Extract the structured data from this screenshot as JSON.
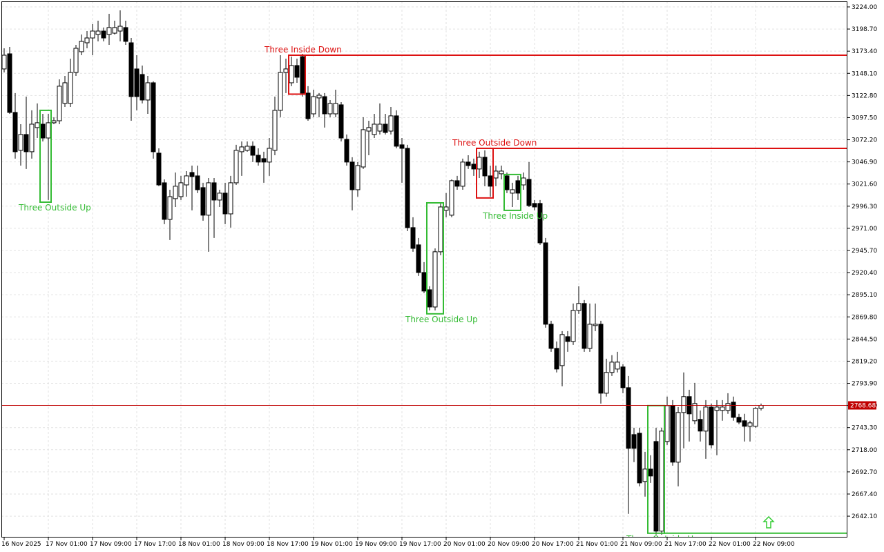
{
  "chart_data": {
    "type": "candlestick",
    "ylim": [
      2618.5,
      3230.3
    ],
    "yticks": [
      {
        "value": 3224,
        "label": "3224.00"
      },
      {
        "value": 3198.7,
        "label": "3198.70"
      },
      {
        "value": 3173.4,
        "label": "3173.40"
      },
      {
        "value": 3148.1,
        "label": "3148.10"
      },
      {
        "value": 3122.8,
        "label": "3122.80"
      },
      {
        "value": 3097.5,
        "label": "3097.50"
      },
      {
        "value": 3072.2,
        "label": "3072.20"
      },
      {
        "value": 3046.9,
        "label": "3046.90"
      },
      {
        "value": 3021.6,
        "label": "3021.60"
      },
      {
        "value": 2996.3,
        "label": "2996.30"
      },
      {
        "value": 2971,
        "label": "2971.00"
      },
      {
        "value": 2945.7,
        "label": "2945.70"
      },
      {
        "value": 2920.4,
        "label": "2920.40"
      },
      {
        "value": 2895.1,
        "label": "2895.10"
      },
      {
        "value": 2869.8,
        "label": "2869.80"
      },
      {
        "value": 2844.5,
        "label": "2844.50"
      },
      {
        "value": 2819.2,
        "label": "2819.20"
      },
      {
        "value": 2793.9,
        "label": "2793.90"
      },
      {
        "value": 2768.6,
        "label": "2768.60"
      },
      {
        "value": 2743.3,
        "label": "2743.30"
      },
      {
        "value": 2718,
        "label": "2718.00"
      },
      {
        "value": 2692.7,
        "label": "2692.70"
      },
      {
        "value": 2667.4,
        "label": "2667.40"
      },
      {
        "value": 2642.1,
        "label": "2642.10"
      }
    ],
    "grid": true,
    "bull_color": "#ffffff",
    "bear_color": "#000000",
    "categories": [
      "16 Nov 2025",
      null,
      null,
      null,
      null,
      null,
      null,
      null,
      "17 Nov 01:00",
      null,
      null,
      null,
      null,
      null,
      null,
      null,
      "17 Nov 09:00",
      null,
      null,
      null,
      null,
      null,
      null,
      null,
      "17 Nov 17:00",
      null,
      null,
      null,
      null,
      null,
      null,
      null,
      "18 Nov 01:00",
      null,
      null,
      null,
      null,
      null,
      null,
      null,
      "18 Nov 09:00",
      null,
      null,
      null,
      null,
      null,
      null,
      null,
      "18 Nov 17:00",
      null,
      null,
      null,
      null,
      null,
      null,
      null,
      "19 Nov 01:00",
      null,
      null,
      null,
      null,
      null,
      null,
      null,
      "19 Nov 09:00",
      null,
      null,
      null,
      null,
      null,
      null,
      null,
      "19 Nov 17:00",
      null,
      null,
      null,
      null,
      null,
      null,
      null,
      "20 Nov 01:00",
      null,
      null,
      null,
      null,
      null,
      null,
      null,
      "20 Nov 09:00",
      null,
      null,
      null,
      null,
      null,
      null,
      null,
      "20 Nov 17:00",
      null,
      null,
      null,
      null,
      null,
      null,
      null,
      "21 Nov 01:00",
      null,
      null,
      null,
      null,
      null,
      null,
      null,
      "21 Nov 09:00",
      null,
      null,
      null,
      null,
      null,
      null,
      null,
      "21 Nov 17:00",
      null,
      null,
      null,
      null,
      null,
      null,
      null,
      "22 Nov 01:00",
      null,
      null,
      null,
      null,
      null,
      null,
      null,
      "22 Nov 09:00",
      null
    ],
    "open": [
      3153.1,
      3170.4,
      3103.4,
      3060.1,
      3078.2,
      3058.5,
      3086.1,
      3090.0,
      3074.2,
      3091.6,
      3093.9,
      3113.7,
      3113.7,
      3149.1,
      3172.8,
      3183.0,
      3188.5,
      3192.5,
      3196.4,
      3192.5,
      3194.0,
      3196.4,
      3200.4,
      3183.0,
      3153.1,
      3146.8,
      3117.6,
      3137.3,
      3056.9,
      3023.0,
      2981.2,
      3004.9,
      3007.2,
      3020.6,
      3034.8,
      3030.9,
      3017.5,
      2986.0,
      3023.0,
      3003.3,
      3011.2,
      2987.5,
      3023.0,
      3058.5,
      3060.1,
      3064.8,
      3054.5,
      3050.6,
      3046.7,
      3060.1,
      3105.8,
      3149.1,
      3137.3,
      3157.0,
      3167.2,
      3125.5,
      3101.8,
      3120.0,
      3121.5,
      3101.8,
      3101.8,
      3112.1,
      3072.7,
      3046.7,
      3015.1,
      3041.1,
      3082.1,
      3078.2,
      3082.1,
      3090.0,
      3082.1,
      3099.5,
      3066.4,
      3062.4,
      2971.8,
      2952.1,
      2920.5,
      2900.8,
      2881.1,
      2944.2,
      2991.5,
      2986.0,
      3025.4,
      3019.1,
      3046.7,
      3044.3,
      3038.8,
      3052.2,
      3030.9,
      3028.5,
      3033.3,
      3030.9,
      3011.2,
      3025.4,
      3020.6,
      3026.9,
      2999.4,
      2999.4,
      2954.4,
      2861.4,
      2833.8,
      2814.1,
      2847.2,
      2841.7,
      2877.2,
      2885.1,
      2833.8,
      2859.9,
      2861.4,
      2782.6,
      2806.3,
      2810.2,
      2812.6,
      2788.9,
      2735.3,
      2736.9,
      2681.7,
      2695.9,
      2727.4,
      2625.0,
      2727.4,
      2768.4,
      2703.8,
      2760.5,
      2778.7,
      2751.1,
      2752.7,
      2739.3,
      2766.8,
      2762.9,
      2762.9,
      2762.9,
      2772.4,
      2755.0,
      2751.1,
      2744.8,
      2744.8,
      2765.3
    ],
    "high": [
      3176.7,
      3178.3,
      3125.5,
      3090.0,
      3121.5,
      3105.8,
      3113.7,
      3101.8,
      3101.8,
      3097.9,
      3141.2,
      3145.2,
      3164.9,
      3180.6,
      3192.5,
      3196.4,
      3204.3,
      3208.2,
      3200.4,
      3216.1,
      3208.2,
      3220.1,
      3208.2,
      3188.5,
      3168.8,
      3157.0,
      3145.2,
      3138.9,
      3062.4,
      3026.9,
      3015.1,
      3034.8,
      3030.9,
      3036.4,
      3042.7,
      3042.7,
      3023.0,
      3028.5,
      3028.5,
      3015.1,
      3023.0,
      3030.9,
      3066.4,
      3070.3,
      3070.3,
      3070.3,
      3062.4,
      3058.5,
      3074.2,
      3121.5,
      3168.8,
      3164.9,
      3167.2,
      3164.9,
      3170.4,
      3133.4,
      3129.4,
      3125.5,
      3125.5,
      3117.6,
      3129.4,
      3115.2,
      3078.2,
      3052.2,
      3046.7,
      3097.9,
      3093.9,
      3101.8,
      3113.7,
      3101.8,
      3109.7,
      3105.8,
      3074.2,
      3066.4,
      2983.6,
      2960.0,
      2932.4,
      2904.8,
      2948.1,
      2999.4,
      3011.2,
      3026.9,
      3030.9,
      3050.6,
      3054.5,
      3050.6,
      3058.5,
      3060.1,
      3042.7,
      3042.7,
      3042.7,
      3034.8,
      3023.0,
      3030.9,
      3034.8,
      3046.7,
      3003.3,
      3003.3,
      2960.0,
      2865.4,
      2841.7,
      2853.5,
      2853.5,
      2885.1,
      2904.8,
      2889.0,
      2885.1,
      2885.1,
      2865.4,
      2822.0,
      2826.0,
      2829.9,
      2815.7,
      2802.3,
      2743.2,
      2743.2,
      2715.6,
      2711.7,
      2743.2,
      2743.2,
      2778.7,
      2774.7,
      2766.8,
      2806.3,
      2786.5,
      2794.4,
      2762.9,
      2774.7,
      2770.8,
      2774.7,
      2774.7,
      2782.6,
      2778.7,
      2759.0,
      2759.0,
      2751.1,
      2766.8,
      2770.8
    ],
    "low": [
      3149.1,
      3101.8,
      3050.6,
      3042.7,
      3038.8,
      3050.6,
      3074.2,
      3070.3,
      3003.3,
      3090.0,
      3090.0,
      3109.7,
      3109.7,
      3145.2,
      3168.8,
      3176.7,
      3168.8,
      3184.6,
      3184.6,
      3180.6,
      3192.5,
      3184.6,
      3180.6,
      3093.9,
      3105.8,
      3113.7,
      3101.8,
      3050.6,
      3019.1,
      2975.7,
      2957.6,
      2995.4,
      3003.3,
      3007.2,
      2991.5,
      3011.2,
      2979.7,
      2944.2,
      2960.0,
      2995.4,
      2975.7,
      2971.8,
      3020.6,
      3030.9,
      3058.5,
      3046.7,
      3042.7,
      3023.0,
      3030.9,
      3054.5,
      3097.9,
      3125.5,
      3133.4,
      3137.3,
      3121.5,
      3093.9,
      3097.9,
      3097.9,
      3086.1,
      3097.9,
      3097.9,
      3070.3,
      3042.7,
      2991.5,
      3007.2,
      3038.8,
      3054.5,
      3074.2,
      3078.2,
      3078.2,
      3078.2,
      3062.4,
      3023.0,
      2967.8,
      2944.2,
      2916.6,
      2896.9,
      2877.2,
      2877.2,
      2940.2,
      2983.6,
      2983.6,
      3015.1,
      3015.1,
      3038.8,
      3030.9,
      3028.5,
      3019.1,
      3007.2,
      3019.1,
      3026.9,
      3011.2,
      2995.4,
      3003.3,
      3015.1,
      2995.4,
      2991.5,
      2952.1,
      2857.5,
      2829.9,
      2806.3,
      2790.5,
      2829.9,
      2837.8,
      2873.3,
      2829.9,
      2829.9,
      2853.5,
      2770.8,
      2778.7,
      2802.3,
      2806.3,
      2782.6,
      2644.7,
      2703.8,
      2676.2,
      2664.4,
      2680.1,
      2621.0,
      2621.0,
      2723.5,
      2699.8,
      2676.2,
      2719.6,
      2727.4,
      2747.1,
      2727.4,
      2707.7,
      2719.6,
      2711.7,
      2751.1,
      2759.0,
      2751.1,
      2747.1,
      2727.4,
      2727.4,
      2743.2,
      2762.9
    ],
    "close": [
      3168.8,
      3103.4,
      3058.5,
      3078.2,
      3058.5,
      3090.0,
      3091.6,
      3074.2,
      3091.6,
      3093.9,
      3133.4,
      3137.3,
      3149.1,
      3176.7,
      3184.6,
      3188.5,
      3196.4,
      3196.4,
      3188.5,
      3200.4,
      3200.4,
      3201.9,
      3184.6,
      3121.5,
      3121.5,
      3117.6,
      3137.3,
      3058.5,
      3020.6,
      2981.2,
      3007.2,
      3019.1,
      3023.0,
      3030.9,
      3030.1,
      3015.1,
      2986.0,
      3023.0,
      3003.3,
      3011.2,
      2987.5,
      3023.0,
      3060.1,
      3064.0,
      3064.8,
      3054.5,
      3046.7,
      3046.7,
      3062.4,
      3105.8,
      3149.1,
      3153.1,
      3157.0,
      3143.6,
      3125.5,
      3096.3,
      3121.5,
      3123.1,
      3101.8,
      3113.7,
      3113.7,
      3074.2,
      3046.7,
      3015.1,
      3042.7,
      3083.7,
      3086.1,
      3090.0,
      3090.0,
      3080.5,
      3099.5,
      3064.8,
      3062.4,
      2971.8,
      2948.1,
      2920.5,
      2899.3,
      2881.1,
      2944.2,
      2995.4,
      2995.4,
      3025.4,
      3019.1,
      3046.7,
      3042.7,
      3038.8,
      3052.2,
      3030.9,
      3019.1,
      3036.4,
      3036.4,
      3015.1,
      3015.1,
      3011.2,
      3028.5,
      2997.0,
      2995.4,
      2954.4,
      2861.4,
      2833.8,
      2810.2,
      2849.6,
      2841.7,
      2877.2,
      2885.1,
      2833.8,
      2861.4,
      2861.4,
      2782.6,
      2806.3,
      2818.1,
      2818.1,
      2788.9,
      2719.6,
      2719.6,
      2680.1,
      2695.9,
      2688.0,
      2625.0,
      2739.3,
      2768.4,
      2703.8,
      2760.5,
      2778.7,
      2759.0,
      2770.8,
      2739.3,
      2766.8,
      2723.5,
      2766.8,
      2766.8,
      2770.8,
      2755.0,
      2749.5,
      2744.8,
      2748.7,
      2765.3,
      2768.68
    ],
    "patterns": [
      {
        "label": "Three Outside Up",
        "color": "#33bb33",
        "x0": 7,
        "x1": 8,
        "high": 3105.8,
        "low": 3000.9
      },
      {
        "label": "Three Inside Down",
        "color": "#dd1111",
        "x0": 52,
        "x1": 54,
        "high": 3168.8,
        "low": 3124.3,
        "level": 3168.8
      },
      {
        "label": "Three Outside Up",
        "color": "#33bb33",
        "x0": 77,
        "x1": 79,
        "high": 3000.1,
        "low": 2873.3
      },
      {
        "label": "Three Outside Down",
        "color": "#dd1111",
        "x0": 86,
        "x1": 88,
        "high": 3062.4,
        "low": 3005.7,
        "level": 3062.4
      },
      {
        "label": "Three Inside Up",
        "color": "#33bb33",
        "x0": 91,
        "x1": 93,
        "high": 3032.5,
        "low": 2991.5
      },
      {
        "label": "Three Outside Up",
        "color": "#33bb33",
        "x0": 117,
        "x1": 119,
        "high": 2768.4,
        "low": 2622.6,
        "level": 2622.6
      }
    ],
    "current_price": 2768.68,
    "current_color": "#c00000"
  }
}
